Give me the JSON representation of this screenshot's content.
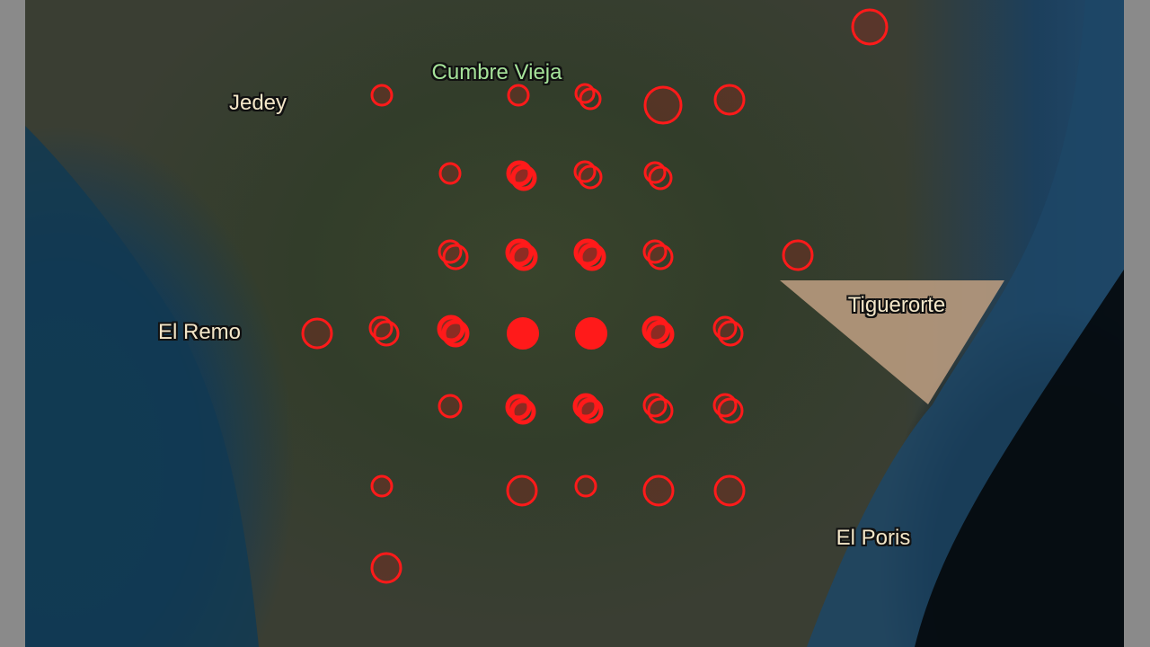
{
  "map": {
    "labels": {
      "jedey": "Jedey",
      "cumbre_vieja": "Cumbre Vieja",
      "el_remo": "El Remo",
      "tiguerorte": "Tiguerorte",
      "el_poris": "El Poris"
    },
    "colors": {
      "marker": "#ff1a1a",
      "label_text": "#f3e6c8",
      "peak_label_text": "#a6e39a",
      "background": "#8a8a8a"
    }
  }
}
